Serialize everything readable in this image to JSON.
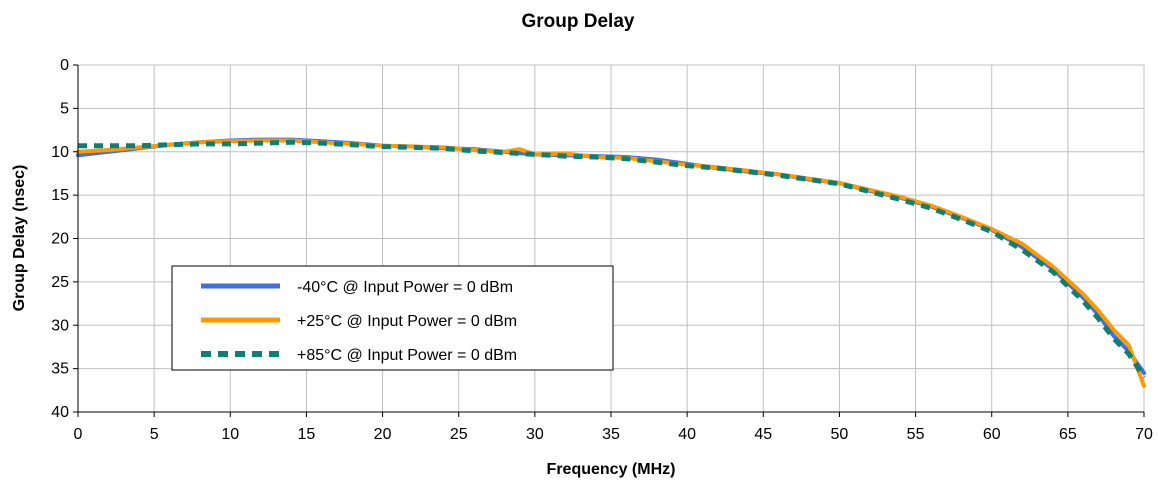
{
  "chart_data": {
    "type": "line",
    "title": "Group Delay",
    "xlabel": "Frequency (MHz)",
    "ylabel": "Group Delay (nsec)",
    "xlim": [
      0,
      70
    ],
    "ylim": [
      0,
      40
    ],
    "y_inverted": true,
    "x_ticks": [
      0,
      5,
      10,
      15,
      20,
      25,
      30,
      35,
      40,
      45,
      50,
      55,
      60,
      65,
      70
    ],
    "y_ticks": [
      0,
      5,
      10,
      15,
      20,
      25,
      30,
      35,
      40
    ],
    "grid": true,
    "legend_position": "lower-left",
    "series": [
      {
        "name": "-40°C @  Input Power = 0 dBm",
        "color": "#3f6fe0",
        "style": "solid",
        "x": [
          0,
          2,
          4,
          6,
          8,
          10,
          12,
          14,
          16,
          18,
          20,
          22,
          24,
          26,
          28,
          30,
          32,
          34,
          36,
          38,
          40,
          42,
          44,
          46,
          48,
          50,
          52,
          54,
          56,
          58,
          60,
          62,
          64,
          66,
          67,
          68,
          69,
          70
        ],
        "y": [
          10.4,
          10.0,
          9.6,
          9.2,
          8.9,
          8.7,
          8.6,
          8.6,
          8.8,
          9.0,
          9.3,
          9.4,
          9.6,
          9.7,
          10.0,
          10.3,
          10.4,
          10.5,
          10.6,
          10.9,
          11.4,
          11.9,
          12.3,
          12.6,
          13.2,
          13.6,
          14.5,
          15.3,
          16.3,
          17.6,
          19.0,
          21.0,
          23.5,
          26.8,
          28.8,
          31.2,
          33.0,
          35.5
        ]
      },
      {
        "name": "+25°C @  Input Power = 0 dBm",
        "color": "#ff9900",
        "style": "solid",
        "x": [
          0,
          2,
          4,
          6,
          8,
          10,
          12,
          14,
          16,
          18,
          20,
          22,
          24,
          26,
          28,
          29,
          30,
          32,
          34,
          36,
          38,
          40,
          42,
          44,
          46,
          48,
          50,
          52,
          54,
          56,
          58,
          60,
          62,
          64,
          66,
          67,
          68,
          69,
          70
        ],
        "y": [
          10.0,
          9.8,
          9.5,
          9.2,
          8.9,
          8.8,
          8.7,
          8.7,
          8.9,
          9.1,
          9.3,
          9.4,
          9.5,
          9.8,
          10.0,
          9.7,
          10.3,
          10.2,
          10.6,
          10.7,
          11.1,
          11.5,
          11.8,
          12.2,
          12.6,
          13.1,
          13.6,
          14.4,
          15.2,
          16.2,
          17.5,
          18.9,
          20.6,
          23.2,
          26.4,
          28.3,
          30.5,
          32.3,
          37.0
        ]
      },
      {
        "name": "+85°C @  Input Power = 0 dBm",
        "color": "#0f7f73",
        "style": "dashed",
        "x": [
          0,
          2,
          4,
          6,
          8,
          10,
          12,
          14,
          16,
          18,
          20,
          22,
          24,
          26,
          28,
          30,
          32,
          34,
          36,
          38,
          40,
          42,
          44,
          46,
          48,
          50,
          52,
          54,
          56,
          58,
          60,
          62,
          64,
          66,
          67,
          68,
          69,
          70
        ],
        "y": [
          9.3,
          9.3,
          9.3,
          9.2,
          9.1,
          9.1,
          9.0,
          8.9,
          9.0,
          9.2,
          9.4,
          9.5,
          9.6,
          9.9,
          10.1,
          10.3,
          10.5,
          10.6,
          10.8,
          11.2,
          11.6,
          11.9,
          12.3,
          12.7,
          13.2,
          13.7,
          14.6,
          15.5,
          16.5,
          17.8,
          19.2,
          21.3,
          23.8,
          27.2,
          29.2,
          31.5,
          33.3,
          36.0
        ]
      }
    ]
  }
}
